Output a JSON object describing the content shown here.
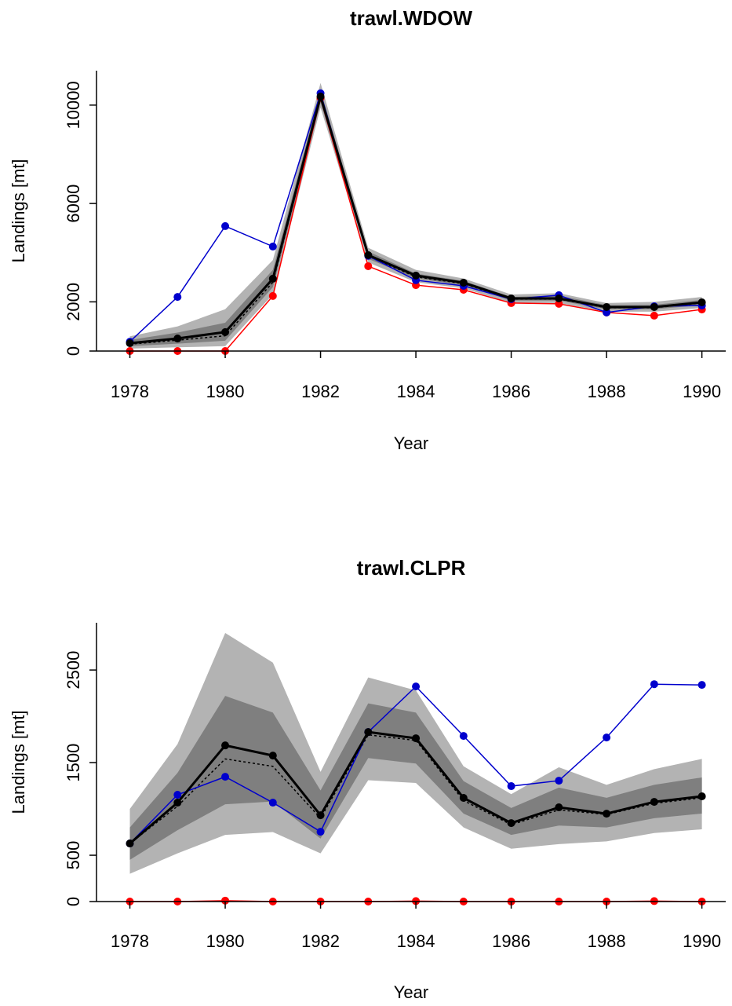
{
  "chart_data": [
    {
      "type": "line",
      "title": "trawl.WDOW",
      "x_label": "Year",
      "y_label": "Landings [mt]",
      "x": [
        1978,
        1979,
        1980,
        1981,
        1982,
        1983,
        1984,
        1985,
        1986,
        1987,
        1988,
        1989,
        1990
      ],
      "xlim": [
        1977.3,
        1990.5
      ],
      "xticks": [
        1978,
        1980,
        1982,
        1984,
        1986,
        1988,
        1990
      ],
      "ylim": [
        0,
        11400
      ],
      "yticks": [
        0,
        2000,
        6000,
        10000
      ],
      "bands": [
        {
          "color": "#b3b3b3",
          "lower": [
            100,
            150,
            200,
            2300,
            9900,
            3600,
            2800,
            2550,
            1950,
            1950,
            1600,
            1600,
            1750
          ],
          "upper": [
            600,
            1000,
            1700,
            3700,
            10900,
            4200,
            3300,
            2950,
            2300,
            2350,
            1950,
            2000,
            2200
          ]
        },
        {
          "color": "#7f7f7f",
          "lower": [
            200,
            300,
            420,
            2600,
            10100,
            3750,
            2950,
            2680,
            2050,
            2050,
            1700,
            1700,
            1870
          ],
          "upper": [
            450,
            750,
            1150,
            3300,
            10600,
            4050,
            3150,
            2850,
            2200,
            2250,
            1870,
            1880,
            2080
          ]
        }
      ],
      "series": [
        {
          "color": "#000000",
          "linestyle": "dotted",
          "markers": false,
          "linewidth": 1.5,
          "values": [
            280,
            440,
            620,
            2800,
            10300,
            3850,
            3020,
            2740,
            2110,
            2110,
            1760,
            1760,
            1950
          ]
        },
        {
          "color": "#ff0000",
          "linestyle": "solid",
          "markers": true,
          "linewidth": 1.5,
          "values": [
            0,
            0,
            0,
            2240,
            10290,
            3450,
            2680,
            2490,
            1950,
            1920,
            1570,
            1440,
            1690
          ]
        },
        {
          "color": "#0000cd",
          "linestyle": "solid",
          "markers": true,
          "linewidth": 1.5,
          "values": [
            380,
            2200,
            5080,
            4250,
            10480,
            3870,
            2880,
            2650,
            2110,
            2270,
            1570,
            1820,
            1850
          ]
        },
        {
          "color": "#000000",
          "linestyle": "solid",
          "markers": true,
          "linewidth": 3,
          "values": [
            320,
            510,
            770,
            2940,
            10350,
            3900,
            3070,
            2780,
            2140,
            2140,
            1790,
            1790,
            1980
          ]
        }
      ]
    },
    {
      "type": "line",
      "title": "trawl.CLPR",
      "x_label": "Year",
      "y_label": "Landings [mt]",
      "x": [
        1978,
        1979,
        1980,
        1981,
        1982,
        1983,
        1984,
        1985,
        1986,
        1987,
        1988,
        1989,
        1990
      ],
      "xlim": [
        1977.3,
        1990.5
      ],
      "xticks": [
        1978,
        1980,
        1982,
        1984,
        1986,
        1988,
        1990
      ],
      "ylim": [
        0,
        3010
      ],
      "yticks": [
        0,
        500,
        1500,
        2500
      ],
      "bands": [
        {
          "color": "#b3b3b3",
          "lower": [
            300,
            520,
            720,
            750,
            520,
            1310,
            1280,
            800,
            570,
            620,
            650,
            740,
            780
          ],
          "upper": [
            1000,
            1700,
            2900,
            2580,
            1400,
            2420,
            2280,
            1460,
            1160,
            1450,
            1260,
            1430,
            1540
          ]
        },
        {
          "color": "#7f7f7f",
          "lower": [
            450,
            770,
            1050,
            1080,
            680,
            1550,
            1490,
            950,
            720,
            820,
            800,
            900,
            950
          ],
          "upper": [
            800,
            1390,
            2220,
            2040,
            1200,
            2140,
            2040,
            1300,
            1010,
            1230,
            1120,
            1260,
            1340
          ]
        }
      ],
      "series": [
        {
          "color": "#000000",
          "linestyle": "dotted",
          "markers": false,
          "linewidth": 1.5,
          "values": [
            627,
            1030,
            1540,
            1460,
            900,
            1800,
            1740,
            1090,
            830,
            990,
            940,
            1060,
            1120
          ]
        },
        {
          "color": "#ff0000",
          "linestyle": "solid",
          "markers": true,
          "linewidth": 1.5,
          "values": [
            0,
            0,
            10,
            0,
            0,
            0,
            5,
            0,
            0,
            0,
            0,
            5,
            0
          ]
        },
        {
          "color": "#0000cd",
          "linestyle": "solid",
          "markers": true,
          "linewidth": 1.5,
          "values": [
            627,
            1153,
            1347,
            1068,
            754,
            1830,
            2322,
            1788,
            1246,
            1305,
            1771,
            2347,
            2339
          ]
        },
        {
          "color": "#000000",
          "linestyle": "solid",
          "markers": true,
          "linewidth": 3,
          "values": [
            627,
            1068,
            1686,
            1576,
            932,
            1830,
            1763,
            1119,
            847,
            1017,
            949,
            1076,
            1136
          ]
        }
      ]
    }
  ]
}
